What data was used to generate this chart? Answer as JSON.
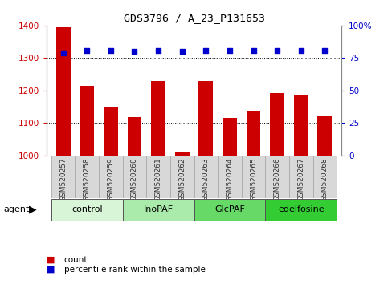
{
  "title": "GDS3796 / A_23_P131653",
  "samples": [
    "GSM520257",
    "GSM520258",
    "GSM520259",
    "GSM520260",
    "GSM520261",
    "GSM520262",
    "GSM520263",
    "GSM520264",
    "GSM520265",
    "GSM520266",
    "GSM520267",
    "GSM520268"
  ],
  "counts": [
    1395,
    1215,
    1150,
    1118,
    1228,
    1012,
    1228,
    1115,
    1138,
    1193,
    1187,
    1120
  ],
  "percentiles": [
    79,
    81,
    81,
    80,
    81,
    80,
    81,
    81,
    81,
    81,
    81,
    81
  ],
  "bar_color": "#cc0000",
  "dot_color": "#0000cc",
  "ylim_left": [
    1000,
    1400
  ],
  "ylim_right": [
    0,
    100
  ],
  "yticks_left": [
    1000,
    1100,
    1200,
    1300,
    1400
  ],
  "yticks_right": [
    0,
    25,
    50,
    75,
    100
  ],
  "ytick_labels_right": [
    "0",
    "25",
    "50",
    "75",
    "100%"
  ],
  "grid_lines": [
    1100,
    1200,
    1300
  ],
  "groups": [
    {
      "label": "control",
      "indices": [
        0,
        1,
        2
      ],
      "color": "#d8f5d8"
    },
    {
      "label": "InoPAF",
      "indices": [
        3,
        4,
        5
      ],
      "color": "#aaeaaa"
    },
    {
      "label": "GlcPAF",
      "indices": [
        6,
        7,
        8
      ],
      "color": "#66d966"
    },
    {
      "label": "edelfosine",
      "indices": [
        9,
        10,
        11
      ],
      "color": "#33cc33"
    }
  ],
  "agent_label": "agent",
  "legend_count_color": "#cc0000",
  "legend_pct_color": "#0000cc",
  "legend_count_label": "count",
  "legend_pct_label": "percentile rank within the sample",
  "tick_bg_color": "#d8d8d8",
  "spine_color": "#888888",
  "bg_color": "#ffffff"
}
